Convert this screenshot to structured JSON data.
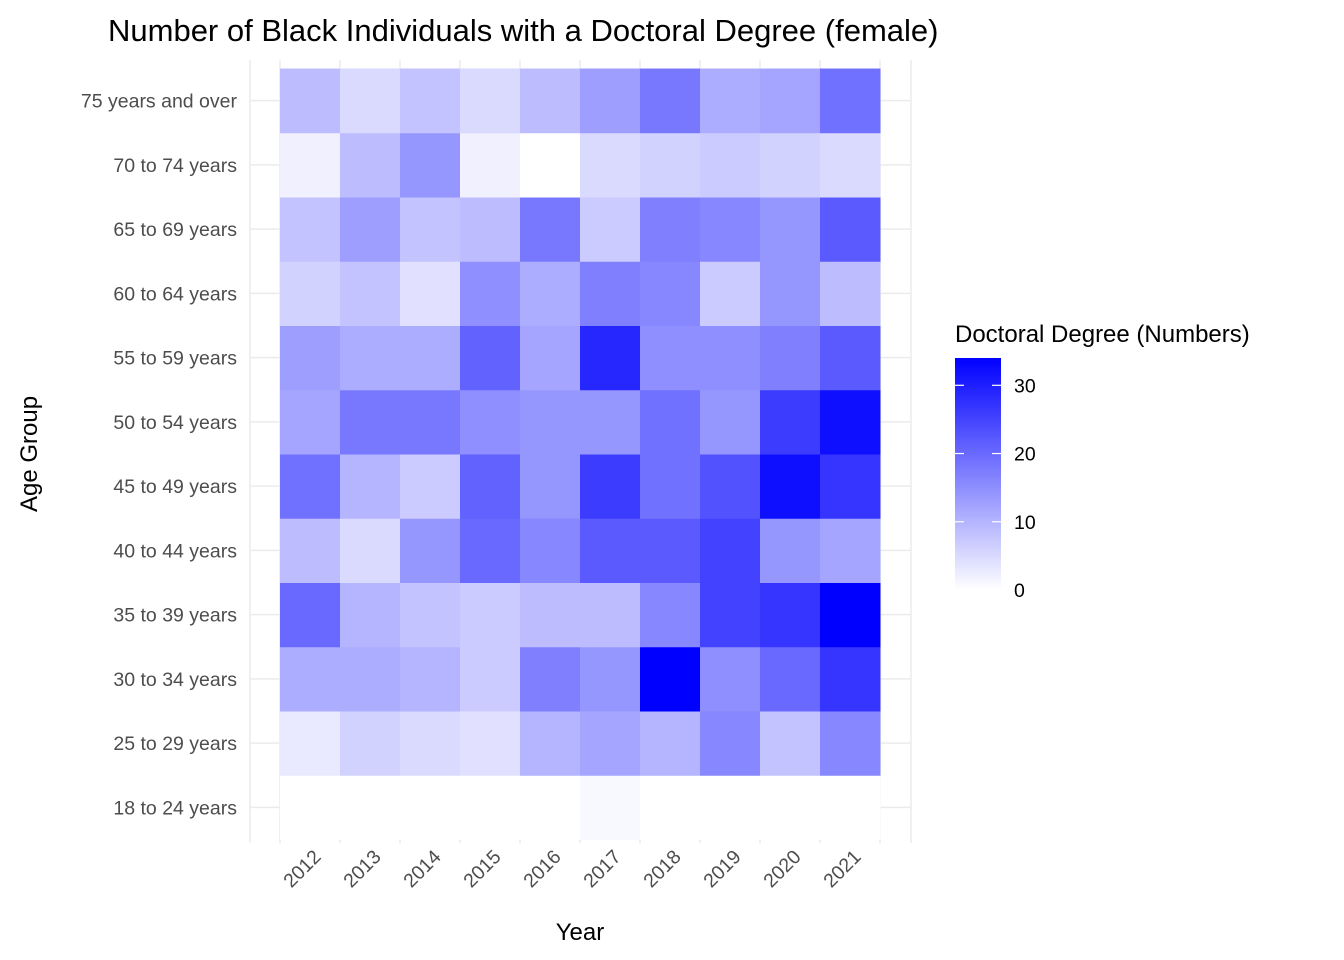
{
  "chart_data": {
    "type": "heatmap",
    "title": "Number of Black Individuals with a Doctoral Degree (female)",
    "xlabel": "Year",
    "ylabel": "Age Group",
    "x": [
      "2012",
      "2013",
      "2014",
      "2015",
      "2016",
      "2017",
      "2018",
      "2019",
      "2020",
      "2021"
    ],
    "y": [
      "18 to 24 years",
      "25 to 29 years",
      "30 to 34 years",
      "35 to 39 years",
      "40 to 44 years",
      "45 to 49 years",
      "50 to 54 years",
      "55 to 59 years",
      "60 to 64 years",
      "65 to 69 years",
      "70 to 74 years",
      "75 years and over"
    ],
    "values": [
      [
        0,
        0,
        0,
        0,
        0,
        1,
        0,
        0,
        0,
        0
      ],
      [
        3,
        6,
        5,
        4,
        10,
        12,
        10,
        16,
        8,
        16
      ],
      [
        11,
        11,
        10,
        7,
        17,
        14,
        34,
        15,
        20,
        27
      ],
      [
        20,
        10,
        8,
        7,
        9,
        9,
        16,
        25,
        27,
        34
      ],
      [
        9,
        5,
        14,
        20,
        16,
        22,
        22,
        25,
        14,
        12
      ],
      [
        19,
        10,
        7,
        21,
        14,
        26,
        19,
        23,
        32,
        27
      ],
      [
        12,
        18,
        18,
        15,
        14,
        14,
        19,
        14,
        26,
        32
      ],
      [
        13,
        11,
        11,
        21,
        12,
        29,
        15,
        15,
        17,
        22
      ],
      [
        6,
        8,
        4,
        15,
        11,
        17,
        16,
        7,
        14,
        9
      ],
      [
        8,
        13,
        8,
        9,
        18,
        7,
        17,
        16,
        14,
        22
      ],
      [
        2,
        9,
        14,
        2,
        0,
        5,
        6,
        7,
        6,
        5
      ],
      [
        9,
        5,
        8,
        5,
        9,
        13,
        18,
        11,
        12,
        19
      ]
    ],
    "legend": {
      "title": "Doctoral Degree (Numbers)",
      "ticks": [
        0,
        10,
        20,
        30
      ],
      "tick_labels": [
        "0",
        "10",
        "20",
        "30"
      ],
      "range": [
        0,
        34
      ],
      "placement": "right"
    },
    "colors": {
      "low": "#ffffff",
      "high": "#0000ff"
    },
    "grid": true
  }
}
